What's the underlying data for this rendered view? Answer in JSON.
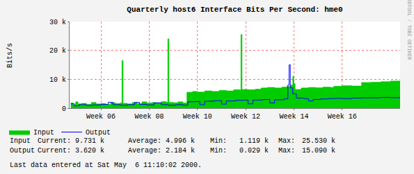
{
  "chart_data": {
    "type": "line",
    "title": "Quarterly host6 Interface Bits Per Second: hme0",
    "y_label": "Bits/s",
    "xlim": [
      4.7,
      18.4
    ],
    "xticks": [
      {
        "value": 6,
        "label": "Week 06"
      },
      {
        "value": 8,
        "label": "Week 08"
      },
      {
        "value": 10,
        "label": "Week 10"
      },
      {
        "value": 12,
        "label": "Week 12"
      },
      {
        "value": 14,
        "label": "Week 14"
      },
      {
        "value": 16,
        "label": "Week 16"
      }
    ],
    "ylim": [
      0,
      30000
    ],
    "yticks": [
      0,
      {
        "value": 10000,
        "label": "10 k"
      },
      {
        "value": 20000,
        "label": "20 k"
      },
      {
        "value": 30000,
        "label": "30 k"
      }
    ],
    "grid": true,
    "legend": "bottom",
    "series": [
      {
        "name": "Input",
        "type": "area",
        "color": "#00cc00",
        "x": [
          4.75,
          4.85,
          4.95,
          5.05,
          5.2,
          5.4,
          5.6,
          5.8,
          6.0,
          6.2,
          6.4,
          6.6,
          6.8,
          6.87,
          6.92,
          7.1,
          7.3,
          7.5,
          7.7,
          7.9,
          8.1,
          8.3,
          8.5,
          8.7,
          8.77,
          8.82,
          9.0,
          9.2,
          9.4,
          9.56,
          9.8,
          10.0,
          10.3,
          10.6,
          10.9,
          11.2,
          11.5,
          11.75,
          11.8,
          11.85,
          12.1,
          12.4,
          12.64,
          12.9,
          13.2,
          13.5,
          13.7,
          13.85,
          13.95,
          14.0,
          14.05,
          14.3,
          14.6,
          14.9,
          15.2,
          15.5,
          15.65,
          16.0,
          16.4,
          16.8,
          17.2,
          17.6,
          18.0,
          18.4
        ],
        "values": [
          1800,
          1200,
          2200,
          1500,
          1700,
          1300,
          2000,
          1500,
          1600,
          1300,
          1900,
          1600,
          1800,
          16500,
          1700,
          1500,
          2000,
          1600,
          2200,
          1800,
          2000,
          1900,
          2300,
          2100,
          24000,
          2000,
          1900,
          2200,
          1800,
          5500,
          5800,
          5600,
          6000,
          5800,
          6200,
          6000,
          6400,
          6300,
          25500,
          6500,
          6400,
          6600,
          7000,
          7200,
          7000,
          7300,
          7500,
          8000,
          11000,
          8500,
          6500,
          7000,
          7200,
          7100,
          7300,
          7200,
          7600,
          7800,
          7700,
          8900,
          9000,
          9200,
          9400,
          9700
        ]
      },
      {
        "name": "Output",
        "type": "line",
        "color": "#0000ff",
        "x": [
          4.75,
          4.9,
          5.1,
          5.4,
          5.7,
          6.0,
          6.3,
          6.5,
          6.8,
          7.1,
          7.4,
          7.6,
          7.9,
          8.2,
          8.5,
          8.8,
          9.1,
          9.4,
          9.6,
          9.9,
          10.1,
          10.3,
          10.7,
          11.0,
          11.2,
          11.6,
          11.9,
          12.1,
          12.3,
          12.7,
          13.0,
          13.2,
          13.6,
          13.75,
          13.8,
          13.85,
          13.95,
          14.1,
          14.4,
          14.6,
          14.8,
          15.1,
          15.4,
          15.7,
          16.0,
          16.4,
          16.8,
          17.2,
          17.6,
          18.0,
          18.4
        ],
        "values": [
          1500,
          800,
          1200,
          1000,
          1100,
          1300,
          2000,
          1200,
          1000,
          1200,
          2000,
          1300,
          1100,
          1800,
          1200,
          1000,
          1200,
          1000,
          2200,
          2300,
          1200,
          2400,
          2600,
          1400,
          2500,
          2700,
          2800,
          1500,
          2800,
          3000,
          1800,
          2900,
          3200,
          8000,
          15000,
          7000,
          5000,
          3500,
          3300,
          2500,
          3000,
          3200,
          3300,
          3400,
          3300,
          3500,
          3600,
          3600,
          3700,
          3600,
          3620
        ]
      }
    ],
    "stats": {
      "labels": [
        "Current:",
        "Average:",
        "Min:",
        "Max:"
      ],
      "rows": [
        {
          "name": "Input",
          "values": [
            "9.731 k",
            "4.996 k",
            "1.119 k",
            "25.530 k"
          ]
        },
        {
          "name": "Output",
          "values": [
            "3.620 k",
            "2.184 k",
            "0.029 k",
            "15.090 k"
          ]
        }
      ]
    },
    "annotations": [
      "RRDTOOL / TOBI OETIKER",
      "Last data entered at Sat May  6 11:10:02 2000."
    ]
  }
}
